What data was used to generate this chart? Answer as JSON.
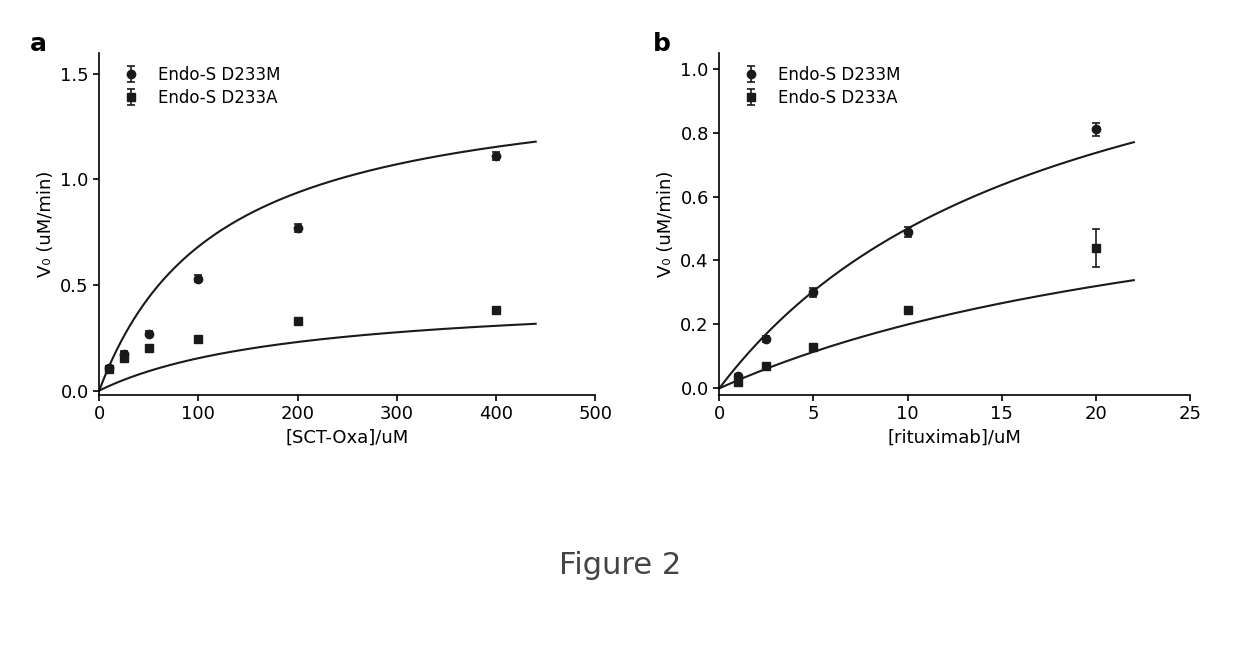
{
  "panel_a": {
    "title_label": "a",
    "xlabel": "[SCT-Oxa]/uM",
    "ylabel": "V₀ (uM/min)",
    "xlim": [
      0,
      500
    ],
    "ylim": [
      -0.02,
      1.6
    ],
    "yticks": [
      0.0,
      0.5,
      1.0,
      1.5
    ],
    "xticks": [
      0,
      100,
      200,
      300,
      400,
      500
    ],
    "series": [
      {
        "label": "Endo-S D233M",
        "marker": "o",
        "x": [
          10,
          25,
          50,
          100,
          200,
          400
        ],
        "y": [
          0.105,
          0.175,
          0.27,
          0.53,
          0.77,
          1.11
        ],
        "yerr": [
          0.008,
          0.012,
          0.01,
          0.018,
          0.02,
          0.02
        ],
        "Vmax": 1.5,
        "Km": 120
      },
      {
        "label": "Endo-S D233A",
        "marker": "s",
        "x": [
          10,
          25,
          50,
          100,
          200,
          400
        ],
        "y": [
          0.1,
          0.155,
          0.2,
          0.245,
          0.33,
          0.38
        ],
        "yerr": [
          0.008,
          0.01,
          0.012,
          0.015,
          0.01,
          0.01
        ],
        "Vmax": 0.46,
        "Km": 200
      }
    ]
  },
  "panel_b": {
    "title_label": "b",
    "xlabel": "[rituximab]/uM",
    "ylabel": "V₀ (uM/min)",
    "xlim": [
      0,
      25
    ],
    "ylim": [
      -0.02,
      1.05
    ],
    "yticks": [
      0.0,
      0.2,
      0.4,
      0.6,
      0.8,
      1.0
    ],
    "xticks": [
      0,
      5,
      10,
      15,
      20,
      25
    ],
    "series": [
      {
        "label": "Endo-S D233M",
        "marker": "o",
        "x": [
          1,
          2.5,
          5,
          10,
          20
        ],
        "y": [
          0.04,
          0.155,
          0.3,
          0.49,
          0.81
        ],
        "yerr": [
          0.005,
          0.01,
          0.015,
          0.015,
          0.02
        ],
        "Vmax": 1.4,
        "Km": 18
      },
      {
        "label": "Endo-S D233A",
        "marker": "s",
        "x": [
          1,
          2.5,
          5,
          10,
          20
        ],
        "y": [
          0.02,
          0.07,
          0.13,
          0.245,
          0.44
        ],
        "yerr": [
          0.003,
          0.008,
          0.01,
          0.01,
          0.06
        ],
        "Vmax": 0.8,
        "Km": 30
      }
    ]
  },
  "figure_label": "Figure 2",
  "line_color": "#1a1a1a",
  "font_size": 13,
  "label_font_size": 13,
  "legend_font_size": 12,
  "panel_label_font_size": 18,
  "figure_label_font_size": 22
}
